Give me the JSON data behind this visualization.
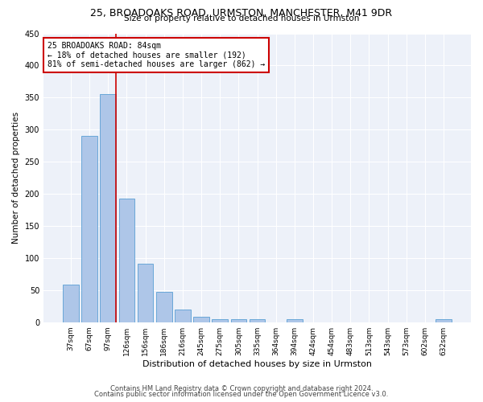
{
  "title1": "25, BROADOAKS ROAD, URMSTON, MANCHESTER, M41 9DR",
  "title2": "Size of property relative to detached houses in Urmston",
  "xlabel": "Distribution of detached houses by size in Urmston",
  "ylabel": "Number of detached properties",
  "categories": [
    "37sqm",
    "67sqm",
    "97sqm",
    "126sqm",
    "156sqm",
    "186sqm",
    "216sqm",
    "245sqm",
    "275sqm",
    "305sqm",
    "335sqm",
    "364sqm",
    "394sqm",
    "424sqm",
    "454sqm",
    "483sqm",
    "513sqm",
    "543sqm",
    "573sqm",
    "602sqm",
    "632sqm"
  ],
  "values": [
    59,
    290,
    355,
    193,
    91,
    47,
    20,
    9,
    5,
    5,
    5,
    0,
    5,
    0,
    0,
    0,
    0,
    0,
    0,
    0,
    5
  ],
  "bar_color": "#aec6e8",
  "bar_edge_color": "#5a9fd4",
  "vline_index": 2,
  "vline_color": "#cc0000",
  "annotation_text": "25 BROADOAKS ROAD: 84sqm\n← 18% of detached houses are smaller (192)\n81% of semi-detached houses are larger (862) →",
  "annotation_box_color": "#ffffff",
  "annotation_box_edge": "#cc0000",
  "footer1": "Contains HM Land Registry data © Crown copyright and database right 2024.",
  "footer2": "Contains public sector information licensed under the Open Government Licence v3.0.",
  "bg_color": "#edf1f9",
  "ylim": [
    0,
    450
  ],
  "yticks": [
    0,
    50,
    100,
    150,
    200,
    250,
    300,
    350,
    400,
    450
  ]
}
